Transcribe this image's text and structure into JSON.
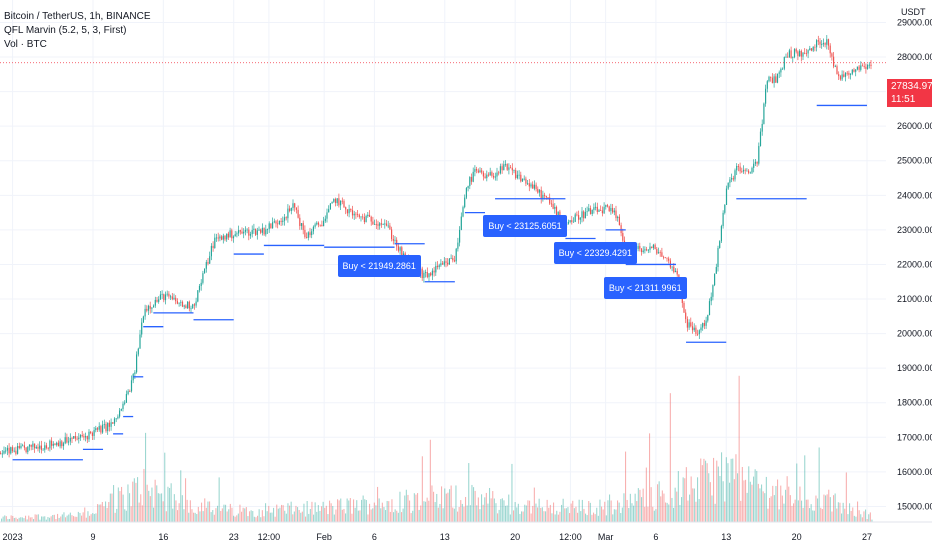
{
  "legend": {
    "symbol": "Bitcoin / TetherUS, 1h, BINANCE",
    "indicator": "QFL Marvin (5.2, 5, 3, First)",
    "volume": "Vol · BTC"
  },
  "price_scale": {
    "unit": "USDT",
    "current_price": "27834.97",
    "countdown": "11:51"
  },
  "colors": {
    "up": "#26a69a",
    "down": "#ef5350",
    "base_line": "#2962ff",
    "buy_label_bg": "#2962ff",
    "price_tag": "#f23645",
    "grid": "#f0f3fa",
    "axis_text": "#131722"
  },
  "chart_data": {
    "type": "candlestick",
    "x_axis": {
      "type": "date",
      "start": "2022-12-30T18:00",
      "end": "2023-03-27T12:00",
      "tick_labels": [
        {
          "label": "2023",
          "date": "2023-01-01"
        },
        {
          "label": "9",
          "date": "2023-01-09"
        },
        {
          "label": "16",
          "date": "2023-01-16"
        },
        {
          "label": "23",
          "date": "2023-01-23"
        },
        {
          "label": "12:00",
          "date": "2023-01-26T12:00"
        },
        {
          "label": "Feb",
          "date": "2023-02-01"
        },
        {
          "label": "6",
          "date": "2023-02-06"
        },
        {
          "label": "13",
          "date": "2023-02-13"
        },
        {
          "label": "20",
          "date": "2023-02-20"
        },
        {
          "label": "12:00",
          "date": "2023-02-25T12:00"
        },
        {
          "label": "Mar",
          "date": "2023-03-01"
        },
        {
          "label": "6",
          "date": "2023-03-06"
        },
        {
          "label": "13",
          "date": "2023-03-13"
        },
        {
          "label": "20",
          "date": "2023-03-20"
        },
        {
          "label": "27",
          "date": "2023-03-27"
        }
      ]
    },
    "y_axis": {
      "range": [
        14550,
        29650
      ],
      "scale": "linear",
      "tick_labels": [
        "29000.00",
        "28000.00",
        "27000.00",
        "26000.00",
        "25000.00",
        "24000.00",
        "23000.00",
        "22000.00",
        "21000.00",
        "20000.00",
        "19000.00",
        "18000.00",
        "17000.00",
        "16000.00",
        "15000.00"
      ]
    },
    "grid": true,
    "series": [
      {
        "kind": "price",
        "points": [
          {
            "date": "2022-12-30T18:00",
            "close": 16550
          },
          {
            "date": "2023-01-02",
            "close": 16650
          },
          {
            "date": "2023-01-05",
            "close": 16820
          },
          {
            "date": "2023-01-08",
            "close": 17000
          },
          {
            "date": "2023-01-09",
            "close": 17150
          },
          {
            "date": "2023-01-11",
            "close": 17400
          },
          {
            "date": "2023-01-12",
            "close": 17950
          },
          {
            "date": "2023-01-13",
            "close": 18750
          },
          {
            "date": "2023-01-14",
            "close": 20700
          },
          {
            "date": "2023-01-16",
            "close": 21100
          },
          {
            "date": "2023-01-18",
            "close": 20800
          },
          {
            "date": "2023-01-19",
            "close": 20850
          },
          {
            "date": "2023-01-21",
            "close": 22700
          },
          {
            "date": "2023-01-23",
            "close": 22900
          },
          {
            "date": "2023-01-26",
            "close": 23000
          },
          {
            "date": "2023-01-28",
            "close": 23400
          },
          {
            "date": "2023-01-29",
            "close": 23700
          },
          {
            "date": "2023-01-30",
            "close": 22800
          },
          {
            "date": "2023-02-01",
            "close": 23300
          },
          {
            "date": "2023-02-02",
            "close": 23900
          },
          {
            "date": "2023-02-04",
            "close": 23400
          },
          {
            "date": "2023-02-07",
            "close": 23200
          },
          {
            "date": "2023-02-09",
            "close": 22100
          },
          {
            "date": "2023-02-11",
            "close": 21650
          },
          {
            "date": "2023-02-14",
            "close": 22200
          },
          {
            "date": "2023-02-15",
            "close": 24200
          },
          {
            "date": "2023-02-16",
            "close": 24700
          },
          {
            "date": "2023-02-17",
            "close": 24500
          },
          {
            "date": "2023-02-19",
            "close": 24800
          },
          {
            "date": "2023-02-21",
            "close": 24400
          },
          {
            "date": "2023-02-23",
            "close": 23900
          },
          {
            "date": "2023-02-25",
            "close": 23200
          },
          {
            "date": "2023-02-27",
            "close": 23500
          },
          {
            "date": "2023-03-01",
            "close": 23600
          },
          {
            "date": "2023-03-02",
            "close": 23400
          },
          {
            "date": "2023-03-03",
            "close": 22400
          },
          {
            "date": "2023-03-06",
            "close": 22450
          },
          {
            "date": "2023-03-08",
            "close": 21800
          },
          {
            "date": "2023-03-09",
            "close": 20300
          },
          {
            "date": "2023-03-10",
            "close": 20000
          },
          {
            "date": "2023-03-11",
            "close": 20400
          },
          {
            "date": "2023-03-12",
            "close": 22100
          },
          {
            "date": "2023-03-13",
            "close": 24200
          },
          {
            "date": "2023-03-14",
            "close": 24800
          },
          {
            "date": "2023-03-15",
            "close": 24600
          },
          {
            "date": "2023-03-16",
            "close": 25000
          },
          {
            "date": "2023-03-17",
            "close": 27300
          },
          {
            "date": "2023-03-18",
            "close": 27400
          },
          {
            "date": "2023-03-19",
            "close": 28100
          },
          {
            "date": "2023-03-21",
            "close": 28100
          },
          {
            "date": "2023-03-22",
            "close": 28400
          },
          {
            "date": "2023-03-23",
            "close": 28500
          },
          {
            "date": "2023-03-24",
            "close": 27400
          },
          {
            "date": "2023-03-26",
            "close": 27700
          },
          {
            "date": "2023-03-27T12:00",
            "close": 27834.97
          }
        ]
      }
    ],
    "base_levels": [
      {
        "price": 16350,
        "from": "2023-01-01",
        "to": "2023-01-08"
      },
      {
        "price": 16650,
        "from": "2023-01-08",
        "to": "2023-01-10"
      },
      {
        "price": 17100,
        "from": "2023-01-11",
        "to": "2023-01-12"
      },
      {
        "price": 17600,
        "from": "2023-01-12",
        "to": "2023-01-13"
      },
      {
        "price": 18750,
        "from": "2023-01-13",
        "to": "2023-01-14"
      },
      {
        "price": 20200,
        "from": "2023-01-14",
        "to": "2023-01-16"
      },
      {
        "price": 20600,
        "from": "2023-01-15",
        "to": "2023-01-19"
      },
      {
        "price": 20400,
        "from": "2023-01-19",
        "to": "2023-01-23"
      },
      {
        "price": 22300,
        "from": "2023-01-23",
        "to": "2023-01-26"
      },
      {
        "price": 22550,
        "from": "2023-01-26",
        "to": "2023-02-01"
      },
      {
        "price": 22500,
        "from": "2023-02-01",
        "to": "2023-02-08"
      },
      {
        "price": 22600,
        "from": "2023-02-08",
        "to": "2023-02-11"
      },
      {
        "price": 21500,
        "from": "2023-02-11",
        "to": "2023-02-14"
      },
      {
        "price": 23500,
        "from": "2023-02-15",
        "to": "2023-02-17"
      },
      {
        "price": 23900,
        "from": "2023-02-18",
        "to": "2023-02-25"
      },
      {
        "price": 22750,
        "from": "2023-02-25",
        "to": "2023-02-28"
      },
      {
        "price": 23000,
        "from": "2023-03-01",
        "to": "2023-03-03"
      },
      {
        "price": 22000,
        "from": "2023-03-03",
        "to": "2023-03-08"
      },
      {
        "price": 19750,
        "from": "2023-03-09",
        "to": "2023-03-13"
      },
      {
        "price": 23900,
        "from": "2023-03-14",
        "to": "2023-03-21"
      },
      {
        "price": 26600,
        "from": "2023-03-22",
        "to": "2023-03-27"
      }
    ],
    "signals": [
      {
        "text": "Buy < 21949.2861",
        "date": "2023-02-08T12:00",
        "price": 21950
      },
      {
        "text": "Buy < 23125.6051",
        "date": "2023-02-23",
        "price": 23125.6
      },
      {
        "text": "Buy < 22329.4291",
        "date": "2023-03-02",
        "price": 22329.4
      },
      {
        "text": "Buy < 21311.9961",
        "date": "2023-03-07",
        "price": 21312
      }
    ],
    "volume": {
      "label": "Vol · BTC",
      "range": [
        0,
        1
      ],
      "profile": [
        {
          "date": "2022-12-30T18:00",
          "level": 0.08
        },
        {
          "date": "2023-01-08",
          "level": 0.12
        },
        {
          "date": "2023-01-12",
          "level": 0.45
        },
        {
          "date": "2023-01-14",
          "level": 0.65
        },
        {
          "date": "2023-01-18",
          "level": 0.35
        },
        {
          "date": "2023-01-23",
          "level": 0.2
        },
        {
          "date": "2023-02-01",
          "level": 0.25
        },
        {
          "date": "2023-02-09",
          "level": 0.4
        },
        {
          "date": "2023-02-15",
          "level": 0.45
        },
        {
          "date": "2023-02-20",
          "level": 0.3
        },
        {
          "date": "2023-02-28",
          "level": 0.25
        },
        {
          "date": "2023-03-03",
          "level": 0.35
        },
        {
          "date": "2023-03-10",
          "level": 0.7
        },
        {
          "date": "2023-03-13",
          "level": 0.9
        },
        {
          "date": "2023-03-17",
          "level": 0.6
        },
        {
          "date": "2023-03-22",
          "level": 0.45
        },
        {
          "date": "2023-03-27",
          "level": 0.1
        }
      ]
    }
  }
}
